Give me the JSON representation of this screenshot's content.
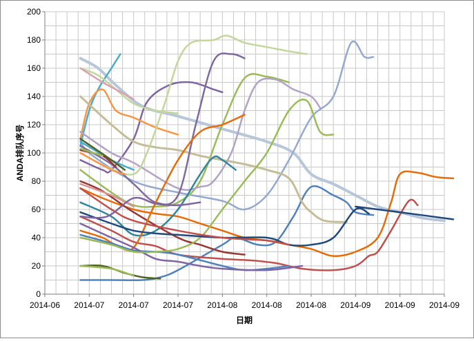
{
  "chart_data": {
    "type": "line",
    "title": "",
    "xlabel": "日期",
    "ylabel": "ANDA排队序号",
    "ylim": [
      0,
      200
    ],
    "y_ticks": [
      0,
      20,
      40,
      60,
      80,
      100,
      120,
      140,
      160,
      180,
      200
    ],
    "x_tick_labels": [
      "2014-06",
      "2014-07",
      "2014-07",
      "2014-07",
      "2014-08",
      "2014-08",
      "2014-08",
      "2014-09",
      "2014-09",
      "2014-09"
    ],
    "x_tick_values": [
      0,
      1,
      2,
      3,
      4,
      5,
      6,
      7,
      8,
      9
    ],
    "xlim": [
      0,
      9
    ],
    "grid": true,
    "legend": "none",
    "series": [
      {
        "color": "#b7c7d9",
        "width": 4,
        "points": [
          [
            0.8,
            167
          ],
          [
            1.2,
            160
          ],
          [
            1.6,
            148
          ],
          [
            2.2,
            133
          ],
          [
            3,
            126
          ],
          [
            4,
            117
          ],
          [
            5,
            108
          ],
          [
            5.6,
            100
          ],
          [
            6,
            85
          ],
          [
            6.5,
            78
          ],
          [
            7,
            70
          ],
          [
            7.5,
            62
          ],
          [
            8,
            58
          ],
          [
            8.5,
            54
          ],
          [
            9,
            52
          ]
        ]
      },
      {
        "color": "#93a9cf",
        "width": 2.5,
        "points": [
          [
            0.8,
            110
          ],
          [
            1,
            100
          ],
          [
            2,
            80
          ],
          [
            3,
            72
          ],
          [
            4,
            66
          ],
          [
            4.5,
            60
          ],
          [
            5,
            70
          ],
          [
            5.5,
            95
          ],
          [
            6,
            125
          ],
          [
            6.5,
            140
          ],
          [
            6.9,
            178
          ],
          [
            7.2,
            168
          ],
          [
            7.4,
            168
          ]
        ]
      },
      {
        "color": "#4f81bd",
        "width": 2.5,
        "points": [
          [
            0.8,
            10
          ],
          [
            1.5,
            10
          ],
          [
            2.2,
            10
          ],
          [
            2.6,
            12
          ],
          [
            3,
            17
          ],
          [
            4,
            35
          ],
          [
            4.3,
            40
          ],
          [
            4.8,
            35
          ],
          [
            5.2,
            37
          ],
          [
            5.6,
            55
          ],
          [
            6,
            76
          ],
          [
            6.5,
            70
          ],
          [
            6.8,
            65
          ],
          [
            7,
            58
          ],
          [
            7.4,
            56
          ]
        ]
      },
      {
        "color": "#c0504d",
        "width": 2.5,
        "points": [
          [
            0.8,
            55
          ],
          [
            1.5,
            45
          ],
          [
            2,
            37
          ],
          [
            2.5,
            34
          ],
          [
            3,
            28
          ],
          [
            4,
            25
          ],
          [
            4.6,
            24
          ],
          [
            5.2,
            22
          ],
          [
            5.8,
            18
          ],
          [
            6.5,
            17
          ],
          [
            7,
            20
          ],
          [
            7.3,
            27
          ],
          [
            7.5,
            30
          ],
          [
            7.8,
            45
          ],
          [
            8.2,
            66
          ],
          [
            8.4,
            63
          ]
        ]
      },
      {
        "color": "#9bbb59",
        "width": 2.5,
        "points": [
          [
            0.8,
            88
          ],
          [
            1.5,
            72
          ],
          [
            2,
            63
          ],
          [
            2.5,
            62
          ],
          [
            3,
            65
          ],
          [
            3.5,
            80
          ],
          [
            4,
            120
          ],
          [
            4.5,
            153
          ],
          [
            5,
            154
          ],
          [
            5.5,
            150
          ]
        ]
      },
      {
        "color": "#8064a2",
        "width": 2.5,
        "points": [
          [
            0.8,
            95
          ],
          [
            1.3,
            88
          ],
          [
            1.5,
            88
          ],
          [
            2,
            110
          ],
          [
            2.3,
            136
          ],
          [
            2.8,
            148
          ],
          [
            3.3,
            150
          ],
          [
            3.8,
            145
          ],
          [
            4,
            143
          ]
        ]
      },
      {
        "color": "#4bacc6",
        "width": 2.5,
        "points": [
          [
            0.8,
            105
          ],
          [
            1,
            130
          ],
          [
            1.2,
            145
          ],
          [
            1.5,
            160
          ],
          [
            1.7,
            170
          ]
        ]
      },
      {
        "color": "#f79646",
        "width": 2.5,
        "points": [
          [
            0.8,
            110
          ],
          [
            1,
            135
          ],
          [
            1.3,
            145
          ],
          [
            1.6,
            130
          ],
          [
            2,
            125
          ],
          [
            2.5,
            118
          ],
          [
            3,
            113
          ]
        ]
      },
      {
        "color": "#c3d69b",
        "width": 2.5,
        "points": [
          [
            0.8,
            160
          ],
          [
            1.2,
            155
          ],
          [
            1.6,
            145
          ],
          [
            2,
            135
          ],
          [
            2.5,
            130
          ],
          [
            3,
            128
          ]
        ]
      },
      {
        "color": "#d9a0b0",
        "width": 2.5,
        "points": [
          [
            0.8,
            160
          ],
          [
            1.3,
            150
          ],
          [
            1.6,
            145
          ],
          [
            2,
            138
          ]
        ]
      },
      {
        "color": "#c4bd97",
        "width": 3,
        "points": [
          [
            0.8,
            140
          ],
          [
            1.5,
            120
          ],
          [
            2,
            108
          ],
          [
            2.5,
            104
          ],
          [
            3,
            102
          ],
          [
            3.5,
            98
          ],
          [
            4,
            95
          ],
          [
            4.5,
            92
          ],
          [
            5,
            88
          ],
          [
            5.5,
            82
          ],
          [
            5.8,
            65
          ],
          [
            6,
            58
          ],
          [
            6.3,
            52
          ],
          [
            6.8,
            51
          ]
        ]
      },
      {
        "color": "#b3a2c7",
        "width": 2.5,
        "points": [
          [
            0.8,
            115
          ],
          [
            1.5,
            100
          ],
          [
            2,
            93
          ],
          [
            3,
            75
          ],
          [
            3.5,
            76
          ],
          [
            3.8,
            80
          ],
          [
            4.2,
            100
          ],
          [
            4.5,
            130
          ],
          [
            4.8,
            150
          ],
          [
            5.2,
            152
          ],
          [
            5.6,
            145
          ],
          [
            6,
            140
          ],
          [
            6.2,
            132
          ]
        ]
      },
      {
        "color": "#c3d69b",
        "width": 2.5,
        "points": [
          [
            0.8,
            100
          ],
          [
            1.4,
            90
          ],
          [
            2,
            85
          ],
          [
            2.3,
            100
          ],
          [
            2.7,
            135
          ],
          [
            3,
            165
          ],
          [
            3.3,
            178
          ],
          [
            3.8,
            180
          ],
          [
            4.1,
            183
          ],
          [
            4.5,
            178
          ],
          [
            5,
            175
          ],
          [
            5.5,
            172
          ],
          [
            5.9,
            170
          ]
        ]
      },
      {
        "color": "#7f6a9f",
        "width": 2.5,
        "points": [
          [
            0.8,
            105
          ],
          [
            1.5,
            92
          ],
          [
            2,
            78
          ],
          [
            2.5,
            65
          ],
          [
            3,
            70
          ],
          [
            3.4,
            120
          ],
          [
            3.8,
            165
          ],
          [
            4.2,
            170
          ],
          [
            4.5,
            167
          ]
        ]
      },
      {
        "color": "#e46c0a",
        "width": 2.5,
        "points": [
          [
            0.8,
            75
          ],
          [
            1.3,
            68
          ],
          [
            2,
            60
          ],
          [
            2.5,
            57
          ],
          [
            3,
            55
          ],
          [
            3.5,
            50
          ],
          [
            4,
            45
          ],
          [
            4.5,
            40
          ],
          [
            5,
            38
          ],
          [
            5.5,
            35
          ],
          [
            6,
            32
          ],
          [
            6.5,
            27
          ],
          [
            7,
            30
          ],
          [
            7.5,
            40
          ],
          [
            7.8,
            65
          ],
          [
            8,
            85
          ],
          [
            8.4,
            86
          ],
          [
            8.8,
            83
          ],
          [
            9.2,
            82
          ]
        ]
      },
      {
        "color": "#31859c",
        "width": 2.5,
        "points": [
          [
            0.8,
            65
          ],
          [
            1.5,
            55
          ],
          [
            2,
            42
          ],
          [
            2.5,
            45
          ],
          [
            3,
            60
          ],
          [
            3.5,
            85
          ],
          [
            3.8,
            97
          ],
          [
            4,
            95
          ],
          [
            4.3,
            88
          ]
        ]
      },
      {
        "color": "#953735",
        "width": 2.5,
        "points": [
          [
            0.8,
            80
          ],
          [
            1.3,
            73
          ],
          [
            2,
            58
          ],
          [
            3,
            40
          ],
          [
            3.5,
            35
          ],
          [
            4,
            30
          ],
          [
            4.5,
            28
          ]
        ]
      },
      {
        "color": "#d99594",
        "width": 2.5,
        "points": [
          [
            0.8,
            78
          ],
          [
            1.5,
            70
          ],
          [
            2,
            62
          ]
        ]
      },
      {
        "color": "#4f6228",
        "width": 2.5,
        "points": [
          [
            0.8,
            20
          ],
          [
            1.3,
            20
          ],
          [
            1.8,
            15
          ],
          [
            2.2,
            12
          ],
          [
            2.6,
            11
          ]
        ]
      },
      {
        "color": "#9bbb59",
        "width": 2.5,
        "points": [
          [
            0.8,
            20
          ],
          [
            1.5,
            18
          ],
          [
            2,
            13
          ]
        ]
      },
      {
        "color": "#e46c0a",
        "width": 2.5,
        "points": [
          [
            0.8,
            45
          ],
          [
            1.3,
            40
          ],
          [
            1.6,
            35
          ],
          [
            2,
            33
          ],
          [
            2.5,
            65
          ],
          [
            3,
            95
          ],
          [
            3.5,
            115
          ],
          [
            4,
            120
          ],
          [
            4.5,
            127
          ]
        ]
      },
      {
        "color": "#4f81bd",
        "width": 2.5,
        "points": [
          [
            0.8,
            42
          ],
          [
            1.5,
            36
          ],
          [
            2,
            31
          ],
          [
            2.5,
            30
          ],
          [
            3,
            28
          ],
          [
            4,
            20
          ],
          [
            4.5,
            17
          ],
          [
            5,
            18
          ],
          [
            5.5,
            20
          ]
        ]
      },
      {
        "color": "#8064a2",
        "width": 2.5,
        "points": [
          [
            0.8,
            50
          ],
          [
            1.5,
            40
          ],
          [
            2,
            33
          ],
          [
            2.5,
            25
          ],
          [
            3,
            23
          ],
          [
            3.5,
            20
          ],
          [
            4,
            18
          ],
          [
            5,
            17
          ],
          [
            5.8,
            20
          ]
        ]
      },
      {
        "color": "#9bbb59",
        "width": 2.5,
        "points": [
          [
            0.8,
            40
          ],
          [
            1.5,
            35
          ],
          [
            2,
            30
          ],
          [
            2.5,
            30
          ],
          [
            3,
            32
          ],
          [
            3.5,
            40
          ],
          [
            4,
            60
          ],
          [
            4.5,
            80
          ],
          [
            5,
            100
          ],
          [
            5.5,
            130
          ],
          [
            5.9,
            137
          ],
          [
            6.2,
            115
          ],
          [
            6.5,
            113
          ]
        ]
      },
      {
        "color": "#1f497d",
        "width": 2.5,
        "points": [
          [
            0.8,
            58
          ],
          [
            1.5,
            50
          ],
          [
            2,
            45
          ],
          [
            2.5,
            43
          ],
          [
            3,
            42
          ],
          [
            4,
            40
          ],
          [
            5,
            40
          ],
          [
            5.5,
            35
          ],
          [
            6,
            35
          ],
          [
            6.5,
            40
          ],
          [
            7,
            60
          ],
          [
            7.3,
            57
          ]
        ]
      },
      {
        "color": "#c0504d",
        "width": 2.5,
        "points": [
          [
            0.8,
            75
          ],
          [
            1.5,
            60
          ],
          [
            2,
            52
          ],
          [
            3,
            45
          ],
          [
            4,
            40
          ],
          [
            5,
            38
          ],
          [
            5.5,
            35
          ]
        ]
      },
      {
        "color": "#8064a2",
        "width": 2.5,
        "points": [
          [
            0.8,
            55
          ],
          [
            1.4,
            55
          ],
          [
            2,
            68
          ],
          [
            2.5,
            64
          ],
          [
            3,
            63
          ],
          [
            3.5,
            65
          ]
        ]
      },
      {
        "color": "#4bacc6",
        "width": 2.5,
        "points": [
          [
            0.8,
            108
          ],
          [
            1.5,
            95
          ],
          [
            2,
            88
          ]
        ]
      },
      {
        "color": "#f79646",
        "width": 2.5,
        "points": [
          [
            0.8,
            100
          ],
          [
            1.5,
            88
          ],
          [
            1.8,
            85
          ]
        ]
      },
      {
        "color": "#953735",
        "width": 2.5,
        "points": [
          [
            0.8,
            102
          ],
          [
            1.3,
            98
          ],
          [
            1.6,
            90
          ]
        ]
      },
      {
        "color": "#4f6228",
        "width": 2.5,
        "points": [
          [
            0.8,
            110
          ],
          [
            1.5,
            95
          ],
          [
            1.8,
            88
          ]
        ]
      },
      {
        "color": "#9bbb59",
        "width": 2.5,
        "points": [
          [
            0.8,
            103
          ],
          [
            1.3,
            98
          ]
        ]
      },
      {
        "color": "#1f497d",
        "width": 2.5,
        "points": [
          [
            7,
            62
          ],
          [
            8,
            58
          ],
          [
            9.2,
            53
          ]
        ]
      }
    ]
  }
}
